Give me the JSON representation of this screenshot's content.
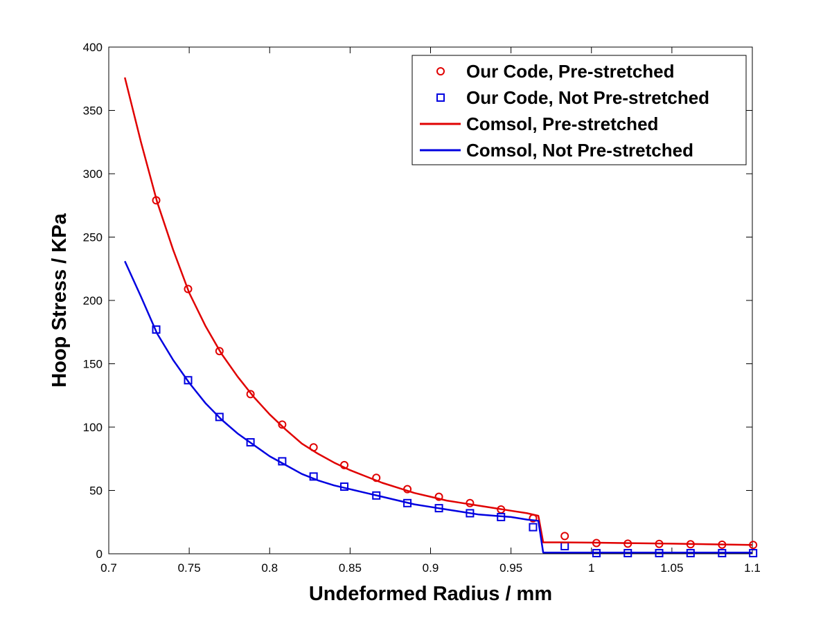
{
  "chart_data": {
    "type": "line",
    "xlabel": "Undeformed Radius / mm",
    "ylabel": "Hoop Stress / KPa",
    "xlim": [
      0.7,
      1.1
    ],
    "ylim": [
      0,
      400
    ],
    "xticks": [
      0.7,
      0.75,
      0.8,
      0.85,
      0.9,
      0.95,
      1,
      1.05,
      1.1
    ],
    "xtick_labels": [
      "0.7",
      "0.75",
      "0.8",
      "0.85",
      "0.9",
      "0.95",
      "1",
      "1.05",
      "1.1"
    ],
    "yticks": [
      0,
      50,
      100,
      150,
      200,
      250,
      300,
      350,
      400
    ],
    "ytick_labels": [
      "0",
      "50",
      "100",
      "150",
      "200",
      "250",
      "300",
      "350",
      "400"
    ],
    "grid": false,
    "legend_position": "top-right",
    "series": [
      {
        "name": "Our Code, Pre-stretched",
        "kind": "markers",
        "marker": "circle",
        "color": "#e00000",
        "x": [
          0.7295,
          0.7493,
          0.7688,
          0.7881,
          0.8078,
          0.8273,
          0.8464,
          0.8663,
          0.8856,
          0.9052,
          0.9245,
          0.9438,
          0.9637,
          0.9834,
          1.0031,
          1.0226,
          1.0421,
          1.0616,
          1.0812,
          1.1005
        ],
        "y": [
          279,
          209,
          160,
          126,
          102,
          84,
          70,
          60,
          51,
          45,
          40,
          35,
          28,
          14,
          8.5,
          8,
          7.8,
          7.5,
          7.2,
          7
        ]
      },
      {
        "name": "Our Code, Not Pre-stretched",
        "kind": "markers",
        "marker": "square",
        "color": "#0000e0",
        "x": [
          0.7295,
          0.7493,
          0.7688,
          0.7881,
          0.8078,
          0.8273,
          0.8464,
          0.8663,
          0.8856,
          0.9052,
          0.9245,
          0.9438,
          0.9637,
          0.9834,
          1.0031,
          1.0226,
          1.0421,
          1.0616,
          1.0812,
          1.1005
        ],
        "y": [
          177,
          137,
          108,
          88,
          73,
          61,
          53,
          46,
          40,
          36,
          32,
          29,
          21,
          6,
          0.5,
          0.5,
          0.5,
          0.5,
          0.5,
          0.5
        ]
      },
      {
        "name": "Comsol, Pre-stretched",
        "kind": "line",
        "color": "#e00000",
        "x": [
          0.71,
          0.72,
          0.73,
          0.74,
          0.75,
          0.76,
          0.77,
          0.78,
          0.79,
          0.8,
          0.81,
          0.82,
          0.83,
          0.84,
          0.85,
          0.86,
          0.87,
          0.88,
          0.89,
          0.9,
          0.91,
          0.92,
          0.93,
          0.94,
          0.95,
          0.96,
          0.967,
          0.97,
          0.98,
          1.0,
          1.05,
          1.1
        ],
        "y": [
          376,
          325,
          278,
          240,
          206,
          180,
          158,
          140,
          124,
          110,
          98,
          87,
          79,
          72,
          66,
          61,
          56,
          52,
          48,
          45,
          42,
          40,
          38,
          36,
          34,
          32,
          30,
          9,
          9,
          8.8,
          8,
          7
        ]
      },
      {
        "name": "Comsol, Not Pre-stretched",
        "kind": "line",
        "color": "#0000e0",
        "x": [
          0.71,
          0.72,
          0.73,
          0.74,
          0.75,
          0.76,
          0.77,
          0.78,
          0.79,
          0.8,
          0.81,
          0.82,
          0.83,
          0.84,
          0.85,
          0.86,
          0.87,
          0.88,
          0.89,
          0.9,
          0.91,
          0.92,
          0.93,
          0.94,
          0.95,
          0.96,
          0.967,
          0.97,
          1.0,
          1.05,
          1.1
        ],
        "y": [
          231,
          203,
          174,
          153,
          135,
          119,
          106,
          95,
          86,
          77,
          70,
          63,
          58,
          54,
          51,
          48,
          45,
          42,
          39,
          37,
          35,
          33,
          31,
          30,
          29,
          27,
          26,
          1,
          1,
          1,
          1
        ]
      }
    ]
  }
}
